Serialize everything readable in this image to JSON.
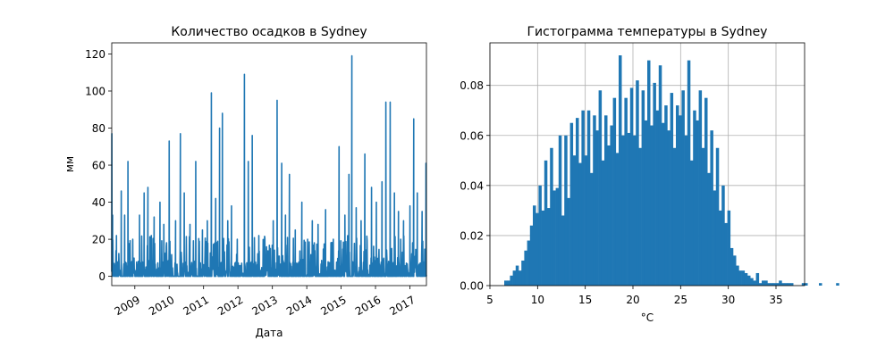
{
  "colors": {
    "series": "#1f77b4",
    "grid": "#b0b0b0",
    "axis": "#000000",
    "background": "#ffffff"
  },
  "chart_data": [
    {
      "type": "line",
      "title": "Количество осадков в Sydney",
      "xlabel": "Дата",
      "ylabel": "мм",
      "xlim": [
        "2008-05-01",
        "2017-06-25"
      ],
      "ylim": [
        -5,
        126
      ],
      "x_ticks": [
        "2009",
        "2010",
        "2011",
        "2012",
        "2013",
        "2014",
        "2015",
        "2016",
        "2017"
      ],
      "y_ticks": [
        "0",
        "20",
        "40",
        "60",
        "80",
        "100",
        "120"
      ],
      "y_tick_values": [
        0,
        20,
        40,
        60,
        80,
        100,
        120
      ],
      "grid": false,
      "series": [
        {
          "peaks": [
            {
              "date": "2008-05-02",
              "mm": 77
            },
            {
              "date": "2008-05-10",
              "mm": 33
            },
            {
              "date": "2008-06-20",
              "mm": 22
            },
            {
              "date": "2008-08-10",
              "mm": 46
            },
            {
              "date": "2008-09-15",
              "mm": 33
            },
            {
              "date": "2008-10-20",
              "mm": 62
            },
            {
              "date": "2008-12-10",
              "mm": 20
            },
            {
              "date": "2009-02-20",
              "mm": 33
            },
            {
              "date": "2009-04-10",
              "mm": 45
            },
            {
              "date": "2009-05-20",
              "mm": 48
            },
            {
              "date": "2009-06-25",
              "mm": 22
            },
            {
              "date": "2009-07-25",
              "mm": 32
            },
            {
              "date": "2009-09-25",
              "mm": 40
            },
            {
              "date": "2009-11-05",
              "mm": 28
            },
            {
              "date": "2010-01-01",
              "mm": 73
            },
            {
              "date": "2010-03-10",
              "mm": 30
            },
            {
              "date": "2010-04-30",
              "mm": 77
            },
            {
              "date": "2010-06-10",
              "mm": 45
            },
            {
              "date": "2010-08-10",
              "mm": 28
            },
            {
              "date": "2010-10-10",
              "mm": 62
            },
            {
              "date": "2010-12-20",
              "mm": 25
            },
            {
              "date": "2011-02-10",
              "mm": 30
            },
            {
              "date": "2011-03-25",
              "mm": 99
            },
            {
              "date": "2011-05-10",
              "mm": 42
            },
            {
              "date": "2011-06-20",
              "mm": 80
            },
            {
              "date": "2011-07-20",
              "mm": 88
            },
            {
              "date": "2011-09-15",
              "mm": 30
            },
            {
              "date": "2011-10-25",
              "mm": 38
            },
            {
              "date": "2011-12-25",
              "mm": 20
            },
            {
              "date": "2012-03-10",
              "mm": 109
            },
            {
              "date": "2012-04-20",
              "mm": 62
            },
            {
              "date": "2012-06-01",
              "mm": 76
            },
            {
              "date": "2012-08-10",
              "mm": 22
            },
            {
              "date": "2012-10-10",
              "mm": 12
            },
            {
              "date": "2012-12-10",
              "mm": 15
            },
            {
              "date": "2013-01-10",
              "mm": 30
            },
            {
              "date": "2013-02-20",
              "mm": 95
            },
            {
              "date": "2013-04-10",
              "mm": 61
            },
            {
              "date": "2013-05-20",
              "mm": 33
            },
            {
              "date": "2013-07-01",
              "mm": 55
            },
            {
              "date": "2013-09-01",
              "mm": 25
            },
            {
              "date": "2013-11-10",
              "mm": 40
            },
            {
              "date": "2014-01-10",
              "mm": 20
            },
            {
              "date": "2014-03-01",
              "mm": 30
            },
            {
              "date": "2014-05-01",
              "mm": 28
            },
            {
              "date": "2014-07-20",
              "mm": 36
            },
            {
              "date": "2014-10-10",
              "mm": 20
            },
            {
              "date": "2014-12-10",
              "mm": 70
            },
            {
              "date": "2015-02-10",
              "mm": 33
            },
            {
              "date": "2015-03-25",
              "mm": 55
            },
            {
              "date": "2015-04-25",
              "mm": 119
            },
            {
              "date": "2015-06-10",
              "mm": 37
            },
            {
              "date": "2015-08-01",
              "mm": 30
            },
            {
              "date": "2015-09-10",
              "mm": 66
            },
            {
              "date": "2015-11-20",
              "mm": 48
            },
            {
              "date": "2016-01-10",
              "mm": 40
            },
            {
              "date": "2016-03-10",
              "mm": 51
            },
            {
              "date": "2016-04-20",
              "mm": 94
            },
            {
              "date": "2016-06-05",
              "mm": 94
            },
            {
              "date": "2016-07-20",
              "mm": 45
            },
            {
              "date": "2016-09-01",
              "mm": 35
            },
            {
              "date": "2016-10-25",
              "mm": 30
            },
            {
              "date": "2017-01-01",
              "mm": 38
            },
            {
              "date": "2017-02-10",
              "mm": 85
            },
            {
              "date": "2017-03-20",
              "mm": 45
            },
            {
              "date": "2017-05-10",
              "mm": 35
            },
            {
              "date": "2017-06-20",
              "mm": 61
            }
          ]
        }
      ]
    },
    {
      "type": "bar",
      "subtype": "histogram",
      "title": "Гистограмма температуры в Sydney",
      "xlabel": "°C",
      "ylabel": "",
      "xlim": [
        5,
        38
      ],
      "ylim": [
        0,
        0.097
      ],
      "x_ticks": [
        "5",
        "10",
        "15",
        "20",
        "25",
        "30",
        "35"
      ],
      "x_tick_values": [
        5,
        10,
        15,
        20,
        25,
        30,
        35
      ],
      "y_ticks": [
        "0.00",
        "0.02",
        "0.04",
        "0.06",
        "0.08"
      ],
      "y_tick_values": [
        0,
        0.02,
        0.04,
        0.06,
        0.08
      ],
      "grid": true,
      "bin_start": 6.5,
      "bin_width": 0.3,
      "values": [
        0.002,
        0.002,
        0.004,
        0.006,
        0.008,
        0.006,
        0.01,
        0.014,
        0.018,
        0.024,
        0.032,
        0.029,
        0.04,
        0.03,
        0.05,
        0.031,
        0.055,
        0.038,
        0.039,
        0.06,
        0.028,
        0.06,
        0.035,
        0.065,
        0.052,
        0.067,
        0.049,
        0.07,
        0.052,
        0.07,
        0.045,
        0.068,
        0.062,
        0.078,
        0.05,
        0.068,
        0.056,
        0.064,
        0.075,
        0.053,
        0.092,
        0.06,
        0.075,
        0.061,
        0.079,
        0.06,
        0.082,
        0.055,
        0.078,
        0.066,
        0.09,
        0.064,
        0.081,
        0.07,
        0.088,
        0.065,
        0.072,
        0.062,
        0.077,
        0.055,
        0.072,
        0.068,
        0.078,
        0.06,
        0.09,
        0.05,
        0.07,
        0.066,
        0.078,
        0.055,
        0.075,
        0.045,
        0.062,
        0.038,
        0.055,
        0.03,
        0.04,
        0.025,
        0.03,
        0.015,
        0.012,
        0.008,
        0.006,
        0.006,
        0.005,
        0.004,
        0.003,
        0.002,
        0.005,
        0.001,
        0.002,
        0.002,
        0.001,
        0.001,
        0.001,
        0.001,
        0.002,
        0.001,
        0.001,
        0.001,
        0.001,
        0.0,
        0.0,
        0.0,
        0.001,
        0.001,
        0.0,
        0.0,
        0.0,
        0.0,
        0.001,
        0.0,
        0.0,
        0.0,
        0.0,
        0.0,
        0.001
      ]
    }
  ]
}
